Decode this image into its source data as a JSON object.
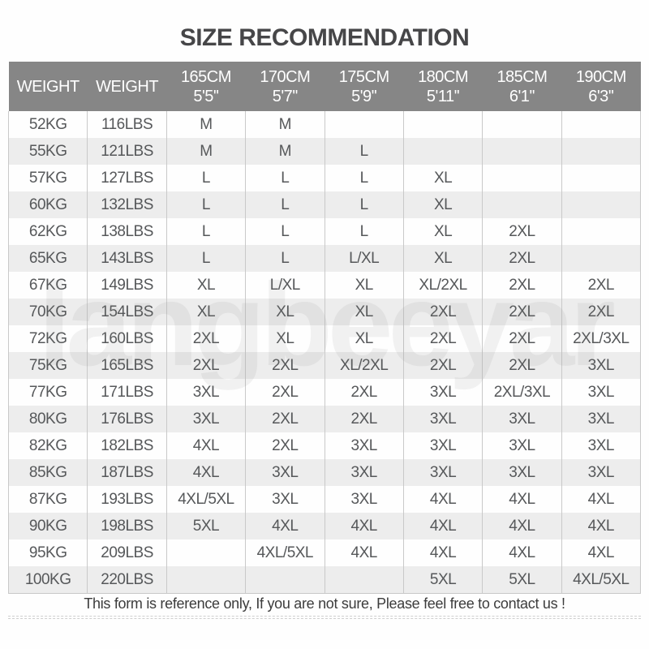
{
  "title": "SIZE RECOMMENDATION",
  "chart_data": {
    "type": "table",
    "title": "SIZE RECOMMENDATION",
    "column_headers": [
      [
        "WEIGHT",
        ""
      ],
      [
        "WEIGHT",
        ""
      ],
      [
        "165CM",
        "5'5''"
      ],
      [
        "170CM",
        "5'7''"
      ],
      [
        "175CM",
        "5'9''"
      ],
      [
        "180CM",
        "5'11''"
      ],
      [
        "185CM",
        "6'1''"
      ],
      [
        "190CM",
        "6'3''"
      ]
    ],
    "rows": [
      [
        "52KG",
        "116LBS",
        "M",
        "M",
        "",
        "",
        "",
        ""
      ],
      [
        "55KG",
        "121LBS",
        "M",
        "M",
        "L",
        "",
        "",
        ""
      ],
      [
        "57KG",
        "127LBS",
        "L",
        "L",
        "L",
        "XL",
        "",
        ""
      ],
      [
        "60KG",
        "132LBS",
        "L",
        "L",
        "L",
        "XL",
        "",
        ""
      ],
      [
        "62KG",
        "138LBS",
        "L",
        "L",
        "L",
        "XL",
        "2XL",
        ""
      ],
      [
        "65KG",
        "143LBS",
        "L",
        "L",
        "L/XL",
        "XL",
        "2XL",
        ""
      ],
      [
        "67KG",
        "149LBS",
        "XL",
        "L/XL",
        "XL",
        "XL/2XL",
        "2XL",
        "2XL"
      ],
      [
        "70KG",
        "154LBS",
        "XL",
        "XL",
        "XL",
        "2XL",
        "2XL",
        "2XL"
      ],
      [
        "72KG",
        "160LBS",
        "2XL",
        "XL",
        "XL",
        "2XL",
        "2XL",
        "2XL/3XL"
      ],
      [
        "75KG",
        "165LBS",
        "2XL",
        "2XL",
        "XL/2XL",
        "2XL",
        "2XL",
        "3XL"
      ],
      [
        "77KG",
        "171LBS",
        "3XL",
        "2XL",
        "2XL",
        "3XL",
        "2XL/3XL",
        "3XL"
      ],
      [
        "80KG",
        "176LBS",
        "3XL",
        "2XL",
        "2XL",
        "3XL",
        "3XL",
        "3XL"
      ],
      [
        "82KG",
        "182LBS",
        "4XL",
        "2XL",
        "3XL",
        "3XL",
        "3XL",
        "3XL"
      ],
      [
        "85KG",
        "187LBS",
        "4XL",
        "3XL",
        "3XL",
        "3XL",
        "3XL",
        "3XL"
      ],
      [
        "87KG",
        "193LBS",
        "4XL/5XL",
        "3XL",
        "3XL",
        "4XL",
        "4XL",
        "4XL"
      ],
      [
        "90KG",
        "198LBS",
        "5XL",
        "4XL",
        "4XL",
        "4XL",
        "4XL",
        "4XL"
      ],
      [
        "95KG",
        "209LBS",
        "",
        "4XL/5XL",
        "4XL",
        "4XL",
        "4XL",
        "4XL"
      ],
      [
        "100KG",
        "220LBS",
        "",
        "",
        "",
        "5XL",
        "5XL",
        "4XL/5XL"
      ]
    ]
  },
  "footer": {
    "note": "This form is reference only, If you are not sure, Please feel free to contact us !"
  },
  "watermark_text": "langbeeyar",
  "colors": {
    "header_bg": "#868686",
    "header_text": "#ffffff",
    "row_stripe": "#ededed",
    "cell_text": "#56585a",
    "grid_border": "#c9c9c9",
    "title_text": "#464648",
    "footer_text": "#3c3c3c"
  }
}
